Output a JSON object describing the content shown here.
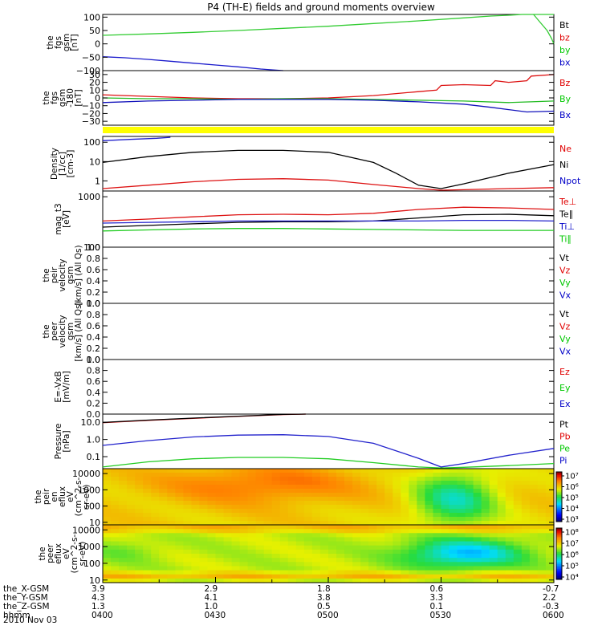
{
  "chart_data": {
    "title": "P4 (TH-E) fields and ground moments overview",
    "date_label": "2010 Nov 03",
    "panels": [
      {
        "id": "fgs-gsm",
        "type": "line",
        "ylabel": [
          "the",
          "fgs",
          "gsm",
          "[nT]"
        ],
        "ylim": [
          -100,
          110
        ],
        "ticks": [
          100,
          50,
          0,
          -50,
          -100
        ],
        "tick_labels": [
          "100",
          "50",
          "0",
          "−50",
          "−100"
        ],
        "legend": [
          {
            "name": "Bt",
            "color": "#000000"
          },
          {
            "name": "bz",
            "color": "#e00000"
          },
          {
            "name": "by",
            "color": "#00c800"
          },
          {
            "name": "bx",
            "color": "#0000c8"
          }
        ],
        "series": [
          {
            "name": "by",
            "color": "#33cc33",
            "x": [
              0,
              0.1,
              0.2,
              0.3,
              0.4,
              0.5,
              0.6,
              0.7,
              0.8,
              0.86,
              0.9,
              0.93,
              0.96,
              0.98,
              1.0
            ],
            "y": [
              32,
              37,
              43,
              50,
              58,
              66,
              76,
              86,
              97,
              104,
              107,
              110,
              112,
              114,
              116
            ]
          },
          {
            "name": "by-tail",
            "color": "#33cc33",
            "x": [
              0.955,
              0.97,
              0.985,
              0.995,
              1.0
            ],
            "y": [
              110,
              80,
              50,
              20,
              0
            ]
          },
          {
            "name": "bx",
            "color": "#1a1acc",
            "x": [
              0,
              0.05,
              0.1,
              0.15,
              0.2,
              0.25,
              0.3,
              0.35,
              0.4
            ],
            "y": [
              -48,
              -52,
              -58,
              -65,
              -72,
              -79,
              -86,
              -94,
              -100
            ]
          }
        ]
      },
      {
        "id": "fgs-gse",
        "type": "line",
        "ylabel": [
          "the",
          "fgs",
          "gsm",
          "-180",
          "[nT]"
        ],
        "ylim": [
          -35,
          35
        ],
        "ticks": [
          30,
          20,
          10,
          0,
          -10,
          -20,
          -30
        ],
        "tick_labels": [
          "30",
          "20",
          "10",
          "0",
          "−10",
          "−20",
          "−30"
        ],
        "legend": [
          {
            "name": "Bz",
            "color": "#e00000"
          },
          {
            "name": "By",
            "color": "#00c800"
          },
          {
            "name": "Bx",
            "color": "#0000c8"
          }
        ],
        "series": [
          {
            "name": "Bz",
            "color": "#dd1111",
            "x": [
              0,
              0.1,
              0.2,
              0.3,
              0.4,
              0.5,
              0.6,
              0.7,
              0.74,
              0.75,
              0.8,
              0.86,
              0.87,
              0.9,
              0.94,
              0.95,
              1.0
            ],
            "y": [
              4,
              2,
              0,
              -1,
              -1,
              0,
              3,
              8,
              10,
              16,
              17,
              16,
              22,
              20,
              22,
              28,
              30
            ]
          },
          {
            "name": "By",
            "color": "#22bb22",
            "x": [
              0,
              0.1,
              0.2,
              0.3,
              0.4,
              0.5,
              0.6,
              0.7,
              0.8,
              0.9,
              1.0
            ],
            "y": [
              0,
              -1,
              -1,
              -2,
              -1,
              -1,
              -2,
              -3,
              -4,
              -6,
              -4
            ]
          },
          {
            "name": "Bx",
            "color": "#1111bb",
            "x": [
              0,
              0.1,
              0.2,
              0.3,
              0.4,
              0.5,
              0.6,
              0.7,
              0.8,
              0.86,
              0.9,
              0.94,
              1.0
            ],
            "y": [
              -6,
              -4,
              -3,
              -2,
              -2,
              -2,
              -3,
              -5,
              -8,
              -12,
              -15,
              -18,
              -17
            ]
          }
        ]
      },
      {
        "id": "density",
        "type": "line",
        "scale": "log",
        "ylabel": [
          "Density",
          "[1/cc]",
          "[cm-3]"
        ],
        "ylim": [
          0.3,
          200
        ],
        "ticks": [
          100,
          10,
          1
        ],
        "tick_labels": [
          "100",
          "10",
          "1"
        ],
        "legend": [
          {
            "name": "Ne",
            "color": "#e00000"
          },
          {
            "name": "Ni",
            "color": "#000000"
          },
          {
            "name": "Npot",
            "color": "#0000c8"
          }
        ],
        "series": [
          {
            "name": "Ni",
            "color": "#000000",
            "x": [
              0,
              0.1,
              0.2,
              0.3,
              0.4,
              0.5,
              0.6,
              0.65,
              0.7,
              0.75,
              0.8,
              0.9,
              1.0
            ],
            "y": [
              9,
              18,
              30,
              38,
              38,
              30,
              9,
              2.5,
              0.6,
              0.4,
              0.7,
              2.5,
              7
            ]
          },
          {
            "name": "Ne",
            "color": "#dd1111",
            "x": [
              0,
              0.1,
              0.2,
              0.3,
              0.4,
              0.5,
              0.6,
              0.7,
              0.75,
              0.8,
              0.9,
              1.0
            ],
            "y": [
              0.4,
              0.6,
              0.9,
              1.2,
              1.3,
              1.1,
              0.65,
              0.4,
              0.33,
              0.35,
              0.4,
              0.45
            ]
          },
          {
            "name": "Npot",
            "color": "#2222cc",
            "x": [
              0,
              0.06,
              0.12,
              0.15
            ],
            "y": [
              120,
              140,
              160,
              180
            ]
          }
        ]
      },
      {
        "id": "temperature",
        "type": "line",
        "scale": "log",
        "ylabel": [
          "mag_t3",
          "[eV]"
        ],
        "ylim": [
          100,
          1300
        ],
        "ticks": [
          1000,
          100
        ],
        "tick_labels": [
          "1000",
          "100"
        ],
        "legend": [
          {
            "name": "Te⊥",
            "color": "#e00000"
          },
          {
            "name": "Te∥",
            "color": "#000000"
          },
          {
            "name": "Ti⊥",
            "color": "#0000c8"
          },
          {
            "name": "Ti∥",
            "color": "#00c800"
          }
        ],
        "series": [
          {
            "name": "Te⊥",
            "color": "#dd1111",
            "x": [
              0,
              0.1,
              0.2,
              0.3,
              0.4,
              0.5,
              0.6,
              0.7,
              0.8,
              0.9,
              1.0
            ],
            "y": [
              330,
              360,
              400,
              440,
              450,
              440,
              470,
              560,
              620,
              600,
              560
            ]
          },
          {
            "name": "Te∥",
            "color": "#000000",
            "x": [
              0,
              0.1,
              0.2,
              0.3,
              0.4,
              0.5,
              0.6,
              0.7,
              0.8,
              0.9,
              1.0
            ],
            "y": [
              250,
              270,
              290,
              310,
              320,
              320,
              330,
              380,
              440,
              450,
              420
            ]
          },
          {
            "name": "Ti⊥",
            "color": "#2222cc",
            "x": [
              0,
              0.1,
              0.2,
              0.3,
              0.4,
              0.5,
              0.6,
              0.7,
              0.8,
              0.9,
              1.0
            ],
            "y": [
              300,
              310,
              320,
              330,
              330,
              330,
              330,
              330,
              340,
              340,
              330
            ]
          },
          {
            "name": "Ti∥",
            "color": "#22cc22",
            "x": [
              0,
              0.1,
              0.2,
              0.3,
              0.4,
              0.5,
              0.6,
              0.7,
              0.8,
              0.9,
              1.0
            ],
            "y": [
              210,
              220,
              230,
              235,
              235,
              230,
              225,
              220,
              215,
              215,
              215
            ]
          }
        ]
      },
      {
        "id": "peir-velocity",
        "type": "line",
        "ylabel": [
          "the",
          "peir",
          "velocity",
          "gsm",
          "[km/s] (All Qs)"
        ],
        "ylim": [
          0,
          1
        ],
        "ticks": [
          1.0,
          0.8,
          0.6,
          0.4,
          0.2,
          0.0
        ],
        "tick_labels": [
          "1.0",
          "0.8",
          "0.6",
          "0.4",
          "0.2",
          "0.0"
        ],
        "legend": [
          {
            "name": "Vt",
            "color": "#000000"
          },
          {
            "name": "Vz",
            "color": "#e00000"
          },
          {
            "name": "Vy",
            "color": "#00c800"
          },
          {
            "name": "Vx",
            "color": "#0000c8"
          }
        ],
        "series": []
      },
      {
        "id": "peer-velocity",
        "type": "line",
        "ylabel": [
          "the",
          "peer",
          "velocity",
          "gsm",
          "[km/s] (All Qs)"
        ],
        "ylim": [
          0,
          1
        ],
        "ticks": [
          1.0,
          0.8,
          0.6,
          0.4,
          0.2,
          0.0
        ],
        "tick_labels": [
          "1.0",
          "0.8",
          "0.6",
          "0.4",
          "0.2",
          "0.0"
        ],
        "legend": [
          {
            "name": "Vt",
            "color": "#000000"
          },
          {
            "name": "Vz",
            "color": "#e00000"
          },
          {
            "name": "Vy",
            "color": "#00c800"
          },
          {
            "name": "Vx",
            "color": "#0000c8"
          }
        ],
        "series": []
      },
      {
        "id": "exb",
        "type": "line",
        "ylabel": [
          "E=-VxB",
          "[mV/m]"
        ],
        "ylim": [
          0,
          1
        ],
        "ticks": [
          1.0,
          0.8,
          0.6,
          0.4,
          0.2,
          0.0
        ],
        "tick_labels": [
          "1.0",
          "0.8",
          "0.6",
          "0.4",
          "0.2",
          "0.0"
        ],
        "legend": [
          {
            "name": "Ez",
            "color": "#e00000"
          },
          {
            "name": "Ey",
            "color": "#00c800"
          },
          {
            "name": "Ex",
            "color": "#0000c8"
          }
        ],
        "series": []
      },
      {
        "id": "pressure",
        "type": "line",
        "scale": "log",
        "ylabel": [
          "Pressure",
          "[nPa]"
        ],
        "ylim": [
          0.02,
          30
        ],
        "ticks": [
          10,
          1,
          0.1
        ],
        "tick_labels": [
          "10.0",
          "1.0",
          "0.1"
        ],
        "legend": [
          {
            "name": "Pt",
            "color": "#000000"
          },
          {
            "name": "Pb",
            "color": "#e00000"
          },
          {
            "name": "Pe",
            "color": "#00c800"
          },
          {
            "name": "Pi",
            "color": "#0000c8"
          }
        ],
        "series": [
          {
            "name": "Pb",
            "color": "#dd1111",
            "x": [
              0,
              0.1,
              0.2,
              0.3,
              0.4,
              0.45
            ],
            "y": [
              9.5,
              13,
              17,
              22,
              28,
              32
            ]
          },
          {
            "name": "Pt",
            "color": "#000000",
            "x": [
              0,
              0.1,
              0.2,
              0.3,
              0.4,
              0.45
            ],
            "y": [
              9.8,
              13.4,
              17.5,
              22.6,
              28.8,
              33
            ]
          },
          {
            "name": "Pi",
            "color": "#2222cc",
            "x": [
              0,
              0.1,
              0.2,
              0.3,
              0.4,
              0.5,
              0.6,
              0.7,
              0.75,
              0.8,
              0.9,
              1.0
            ],
            "y": [
              0.45,
              0.85,
              1.4,
              1.8,
              1.9,
              1.5,
              0.6,
              0.08,
              0.025,
              0.04,
              0.12,
              0.3
            ]
          },
          {
            "name": "Pe",
            "color": "#22cc22",
            "x": [
              0,
              0.1,
              0.2,
              0.3,
              0.4,
              0.5,
              0.6,
              0.7,
              0.75,
              0.8,
              0.9,
              1.0
            ],
            "y": [
              0.025,
              0.05,
              0.075,
              0.09,
              0.09,
              0.075,
              0.045,
              0.025,
              0.022,
              0.024,
              0.03,
              0.04
            ]
          }
        ]
      },
      {
        "id": "peir-eflux",
        "type": "heatmap",
        "ylabel": [
          "the",
          "peir",
          "en",
          "eflux",
          "eV",
          "(cm^2-s-",
          "sr-eV)"
        ],
        "ylim": [
          7,
          20000
        ],
        "ticks": [
          10000,
          1000,
          100,
          10
        ],
        "tick_labels": [
          "10000",
          "1000",
          "100",
          "10"
        ],
        "colorbar_ticks": [
          "10⁷",
          "10⁶",
          "10⁵",
          "10⁴",
          "10³"
        ]
      },
      {
        "id": "peer-eflux",
        "type": "heatmap",
        "ylabel": [
          "the",
          "peer",
          "eflux",
          "eV",
          "(cm^2-s-",
          "sr-eV)"
        ],
        "ylim": [
          7,
          20000
        ],
        "ticks": [
          10000,
          1000,
          100,
          10
        ],
        "tick_labels": [
          "10000",
          "1000",
          "100",
          "10"
        ],
        "colorbar_ticks": [
          "10⁸",
          "10⁷",
          "10⁶",
          "10⁵",
          "10⁴"
        ]
      }
    ],
    "x_axis": {
      "rows": [
        {
          "label": "the_X-GSM",
          "values": [
            "3.9",
            "2.9",
            "1.8",
            "0.6",
            "-0.7"
          ]
        },
        {
          "label": "the_Y-GSM",
          "values": [
            "4.3",
            "4.1",
            "3.8",
            "3.3",
            "2.2"
          ]
        },
        {
          "label": "the_Z-GSM",
          "values": [
            "1.3",
            "1.0",
            "0.5",
            "0.1",
            "-0.3"
          ]
        },
        {
          "label": "hhmm",
          "values": [
            "0400",
            "0430",
            "0500",
            "0530",
            "0600"
          ]
        }
      ]
    }
  }
}
